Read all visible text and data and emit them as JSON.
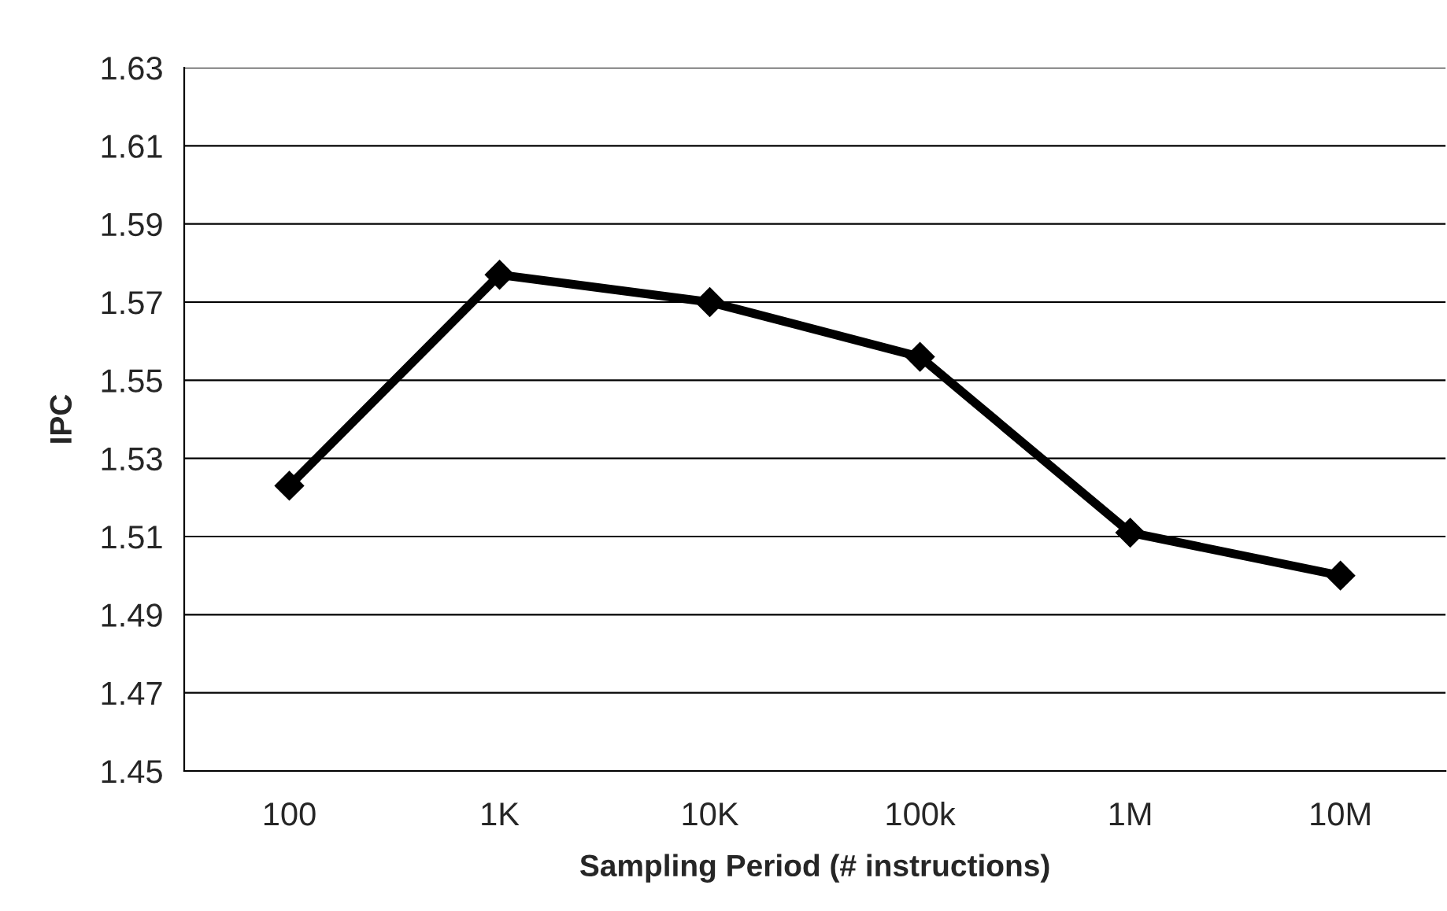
{
  "chart_data": {
    "type": "line",
    "xlabel": "Sampling Period (# instructions)",
    "ylabel": "IPC",
    "categories": [
      "100",
      "1K",
      "10K",
      "100k",
      "1M",
      "10M"
    ],
    "series": [
      {
        "color": "#000000",
        "values": [
          1.523,
          1.577,
          1.57,
          1.556,
          1.511,
          1.5
        ]
      }
    ],
    "ylim": [
      1.45,
      1.63
    ],
    "yticks": [
      1.45,
      1.47,
      1.49,
      1.51,
      1.53,
      1.55,
      1.57,
      1.59,
      1.61,
      1.63
    ],
    "grid": "y",
    "marker": "diamond",
    "line_style": "solid",
    "legend": false
  }
}
